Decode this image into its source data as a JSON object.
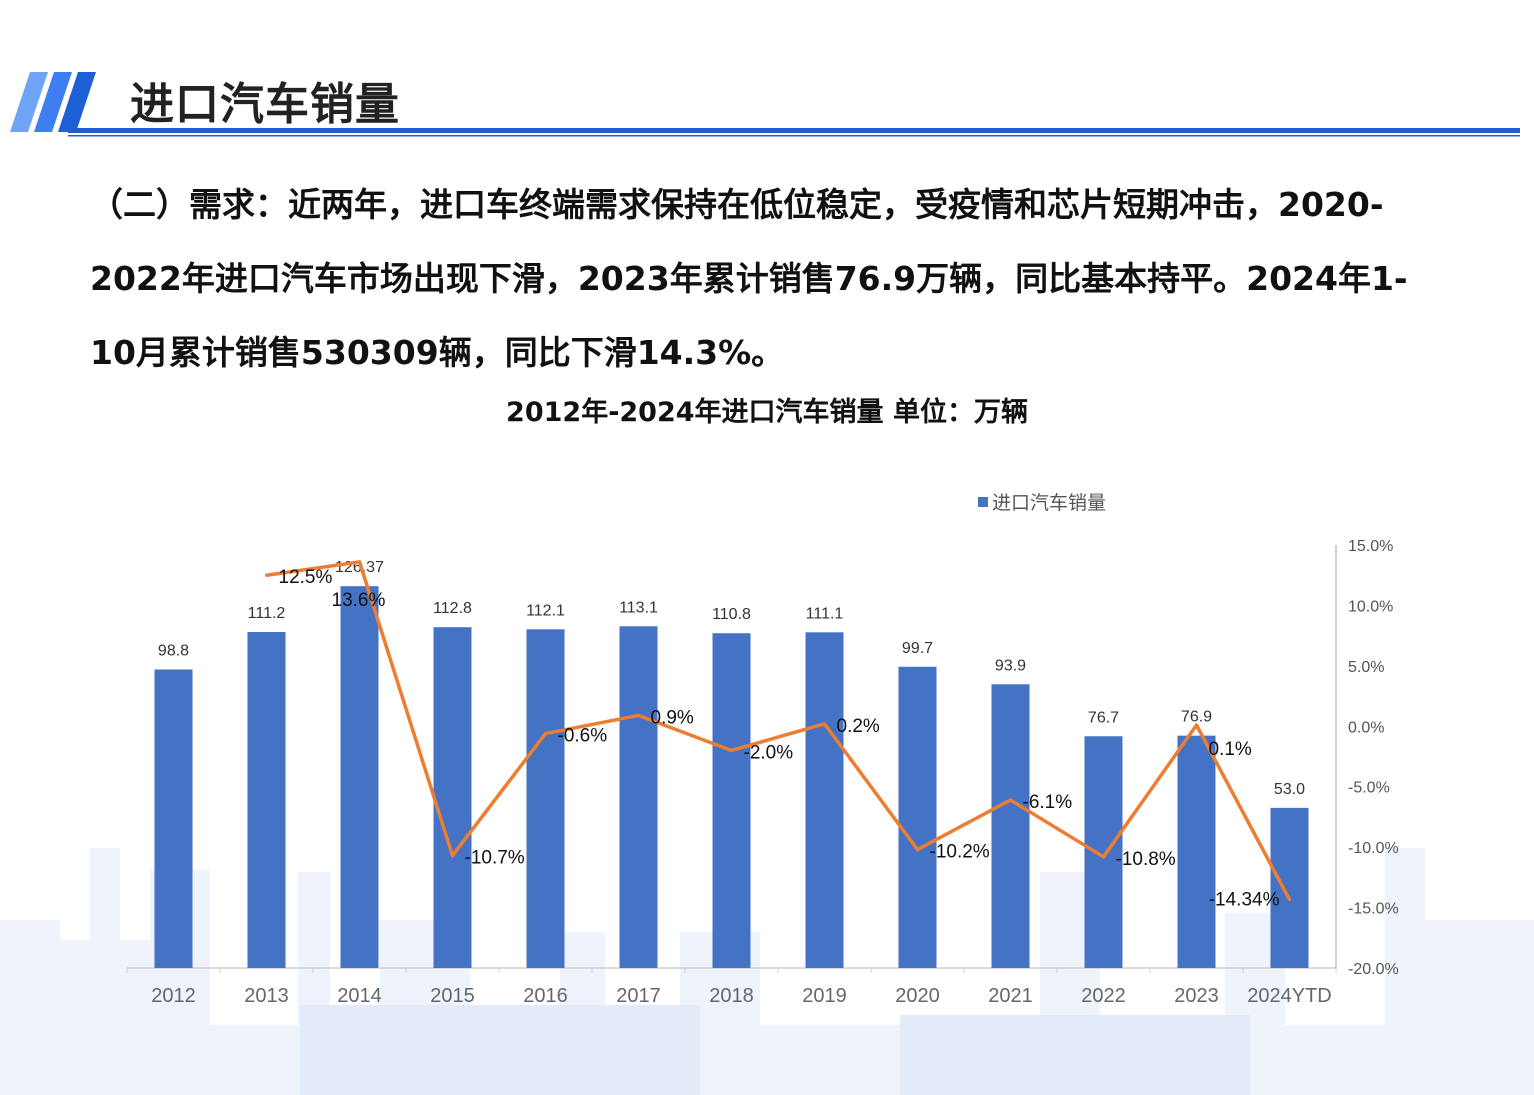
{
  "header": {
    "title": "进口汽车销量",
    "accent": "#1f5fd6"
  },
  "paragraph": "（二）需求：近两年，进口车终端需求保持在低位稳定，受疫情和芯片短期冲击，2020-2022年进口汽车市场出现下滑，2023年累计销售76.9万辆，同比基本持平。2024年1-10月累计销售530309辆，同比下滑14.3%。",
  "chart_data": {
    "type": "bar+line",
    "title": "2012年-2024年进口汽车销量  单位：万辆",
    "categories": [
      "2012",
      "2013",
      "2014",
      "2015",
      "2016",
      "2017",
      "2018",
      "2019",
      "2020",
      "2021",
      "2022",
      "2023",
      "2024YTD"
    ],
    "series": [
      {
        "name": "进口汽车销量",
        "type": "bar",
        "color": "#4472c4",
        "axis": "left",
        "values": [
          98.8,
          111.2,
          126.37,
          112.8,
          112.1,
          113.1,
          110.8,
          111.1,
          99.7,
          93.9,
          76.7,
          76.9,
          53.0
        ],
        "labels": [
          "98.8",
          "111.2",
          "126.37",
          "112.8",
          "112.1",
          "113.1",
          "110.8",
          "111.1",
          "99.7",
          "93.9",
          "76.7",
          "76.9",
          "53.0"
        ]
      },
      {
        "type": "line",
        "color": "#ed7d31",
        "axis": "right",
        "values": [
          null,
          12.5,
          13.6,
          -10.7,
          -0.6,
          0.9,
          -2.0,
          0.2,
          -10.2,
          -6.1,
          -10.8,
          0.1,
          -14.34
        ],
        "labels": [
          null,
          "12.5%",
          "13.6%",
          "-10.7%",
          "-0.6%",
          "0.9%",
          "-2.0%",
          "0.2%",
          "-10.2%",
          "-6.1%",
          "-10.8%",
          "0.1%",
          "-14.34%"
        ]
      }
    ],
    "left_ylim": [
      0,
      140
    ],
    "right_ylim": [
      -20,
      15
    ],
    "right_ticks": [
      "15.0%",
      "10.0%",
      "5.0%",
      "0.0%",
      "-5.0%",
      "-10.0%",
      "-15.0%",
      "-20.0%"
    ],
    "legend": "top-right",
    "grid": false
  }
}
